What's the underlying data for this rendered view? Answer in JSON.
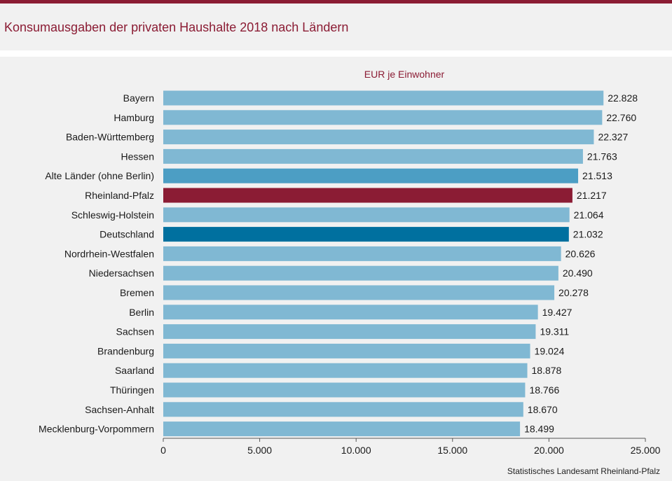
{
  "page": {
    "title": "Konsumausgaben der privaten Haushalte  2018 nach Ländern",
    "source": "Statistisches Landesamt  Rheinland-Pfalz"
  },
  "colors": {
    "accent": "#8b1c34",
    "bar_default": "#80b8d3",
    "bar_alte_laender": "#4c9ec4",
    "bar_rheinland_pfalz": "#8b1c34",
    "bar_deutschland": "#00709f"
  },
  "chart_data": {
    "type": "bar",
    "orientation": "horizontal",
    "subtitle": "EUR je Einwohner",
    "categories": [
      "Bayern",
      "Hamburg",
      "Baden-Württemberg",
      "Hessen",
      "Alte Länder (ohne Berlin)",
      "Rheinland-Pfalz",
      "Schleswig-Holstein",
      "Deutschland",
      "Nordrhein-Westfalen",
      "Niedersachsen",
      "Bremen",
      "Berlin",
      "Sachsen",
      "Brandenburg",
      "Saarland",
      "Thüringen",
      "Sachsen-Anhalt",
      "Mecklenburg-Vorpommern"
    ],
    "values": [
      22828,
      22760,
      22327,
      21763,
      21513,
      21217,
      21064,
      21032,
      20626,
      20490,
      20278,
      19427,
      19311,
      19024,
      18878,
      18766,
      18670,
      18499
    ],
    "value_labels": [
      "22.828",
      "22.760",
      "22.327",
      "21.763",
      "21.513",
      "21.217",
      "21.064",
      "21.032",
      "20.626",
      "20.490",
      "20.278",
      "19.427",
      "19.311",
      "19.024",
      "18.878",
      "18.766",
      "18.670",
      "18.499"
    ],
    "bar_color_keys": [
      "bar_default",
      "bar_default",
      "bar_default",
      "bar_default",
      "bar_alte_laender",
      "bar_rheinland_pfalz",
      "bar_default",
      "bar_deutschland",
      "bar_default",
      "bar_default",
      "bar_default",
      "bar_default",
      "bar_default",
      "bar_default",
      "bar_default",
      "bar_default",
      "bar_default",
      "bar_default"
    ],
    "xlim": [
      0,
      25000
    ],
    "xticks": [
      0,
      5000,
      10000,
      15000,
      20000,
      25000
    ],
    "xtick_labels": [
      "0",
      "5.000",
      "10.000",
      "15.000",
      "20.000",
      "25.000"
    ],
    "grid": false,
    "legend": "none"
  }
}
